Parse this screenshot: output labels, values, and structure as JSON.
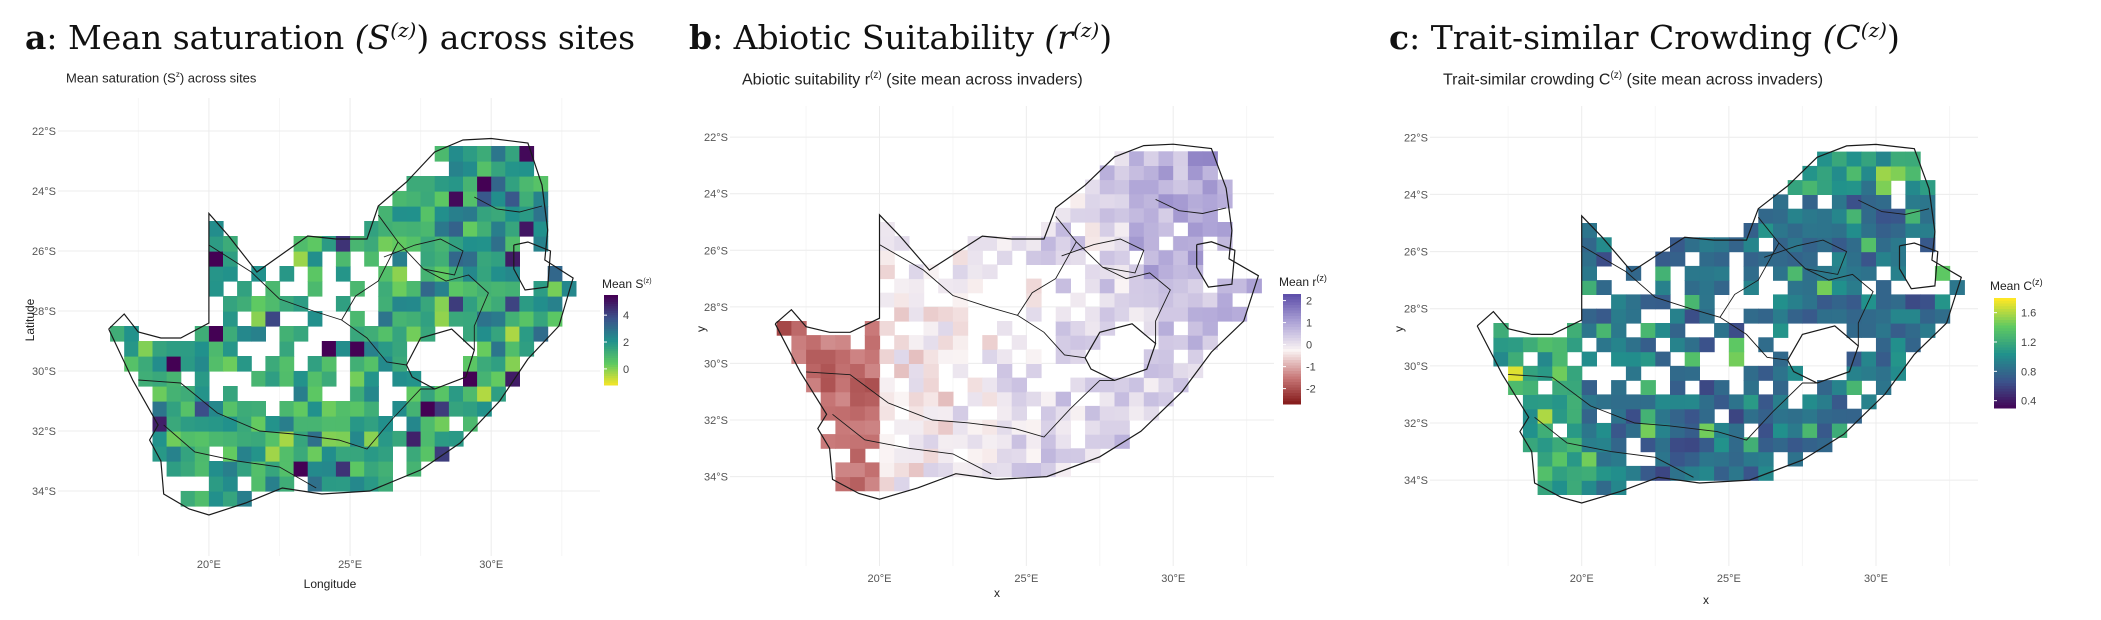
{
  "figure": {
    "panels": [
      {
        "letter": "a",
        "heading_text": ": Mean saturation ",
        "heading_math": "(S",
        "heading_sup": "(z)",
        "heading_math_close": ")",
        "heading_tail": " across sites",
        "subtitle_main": "Mean saturation (S",
        "subtitle_sup": "z",
        "subtitle_tail": ") across sites"
      },
      {
        "letter": "b",
        "heading_text": ": Abiotic Suitability ",
        "heading_math": "(r",
        "heading_sup": "(z)",
        "heading_math_close": ")",
        "heading_tail": "",
        "subtitle_main": "Abiotic suitability r",
        "subtitle_sup": "(z)",
        "subtitle_tail": " (site mean across invaders)"
      },
      {
        "letter": "c",
        "heading_text": ": Trait-similar Crowding ",
        "heading_math": "(C",
        "heading_sup": "(z)",
        "heading_math_close": ")",
        "heading_tail": "",
        "subtitle_main": "Trait-similar crowding C",
        "subtitle_sup": "(z)",
        "subtitle_tail": " (site mean across invaders)"
      }
    ]
  },
  "chart_data": [
    {
      "type": "heatmap",
      "title": "Mean saturation (S^z) across sites",
      "xlabel": "Longitude",
      "ylabel": "Latitude",
      "x_ticks": [
        "20°E",
        "25°E",
        "30°E"
      ],
      "y_ticks": [
        "22°S",
        "24°S",
        "26°S",
        "28°S",
        "30°S",
        "32°S",
        "34°S"
      ],
      "x_range_deg": [
        16,
        33.5
      ],
      "y_range_deg": [
        -35.5,
        -21.5
      ],
      "legend_title": "Mean S",
      "legend_title_sup": "(z)",
      "legend_ticks": [
        "4",
        "2",
        "0"
      ],
      "legend_tick_values": [
        4,
        2,
        0
      ],
      "value_range": [
        -1.2,
        5.5
      ],
      "colormap": "viridis",
      "cell_size_deg": 0.5,
      "grid": true
    },
    {
      "type": "heatmap",
      "title": "Abiotic suitability r^(z) (site mean across invaders)",
      "xlabel": "x",
      "ylabel": "y",
      "x_ticks": [
        "20°E",
        "25°E",
        "30°E"
      ],
      "y_ticks": [
        "22°S",
        "24°S",
        "26°S",
        "28°S",
        "30°S",
        "32°S",
        "34°S"
      ],
      "x_range_deg": [
        16,
        33.5
      ],
      "y_range_deg": [
        -35.5,
        -21.5
      ],
      "legend_title": "Mean r",
      "legend_title_sup": "(z)",
      "legend_ticks": [
        "2",
        "1",
        "0",
        "-1",
        "-2"
      ],
      "legend_tick_values": [
        2,
        1,
        0,
        -1,
        -2
      ],
      "value_range": [
        -2.7,
        2.3
      ],
      "colormap": "diverging red-white-purple",
      "cell_size_deg": 0.5,
      "grid": true
    },
    {
      "type": "heatmap",
      "title": "Trait-similar crowding C^(z) (site mean across invaders)",
      "xlabel": "x",
      "ylabel": "y",
      "x_ticks": [
        "20°E",
        "25°E",
        "30°E"
      ],
      "y_ticks": [
        "22°S",
        "24°S",
        "26°S",
        "28°S",
        "30°S",
        "32°S",
        "34°S"
      ],
      "x_range_deg": [
        16,
        33.5
      ],
      "y_range_deg": [
        -35.5,
        -21.5
      ],
      "legend_title": "Mean C",
      "legend_title_sup": "(z)",
      "legend_ticks": [
        "1.6",
        "1.2",
        "0.8",
        "0.4"
      ],
      "legend_tick_values": [
        1.6,
        1.2,
        0.8,
        0.4
      ],
      "value_range": [
        0.3,
        1.8
      ],
      "colormap": "viridis",
      "cell_size_deg": 0.5,
      "grid": true
    }
  ]
}
